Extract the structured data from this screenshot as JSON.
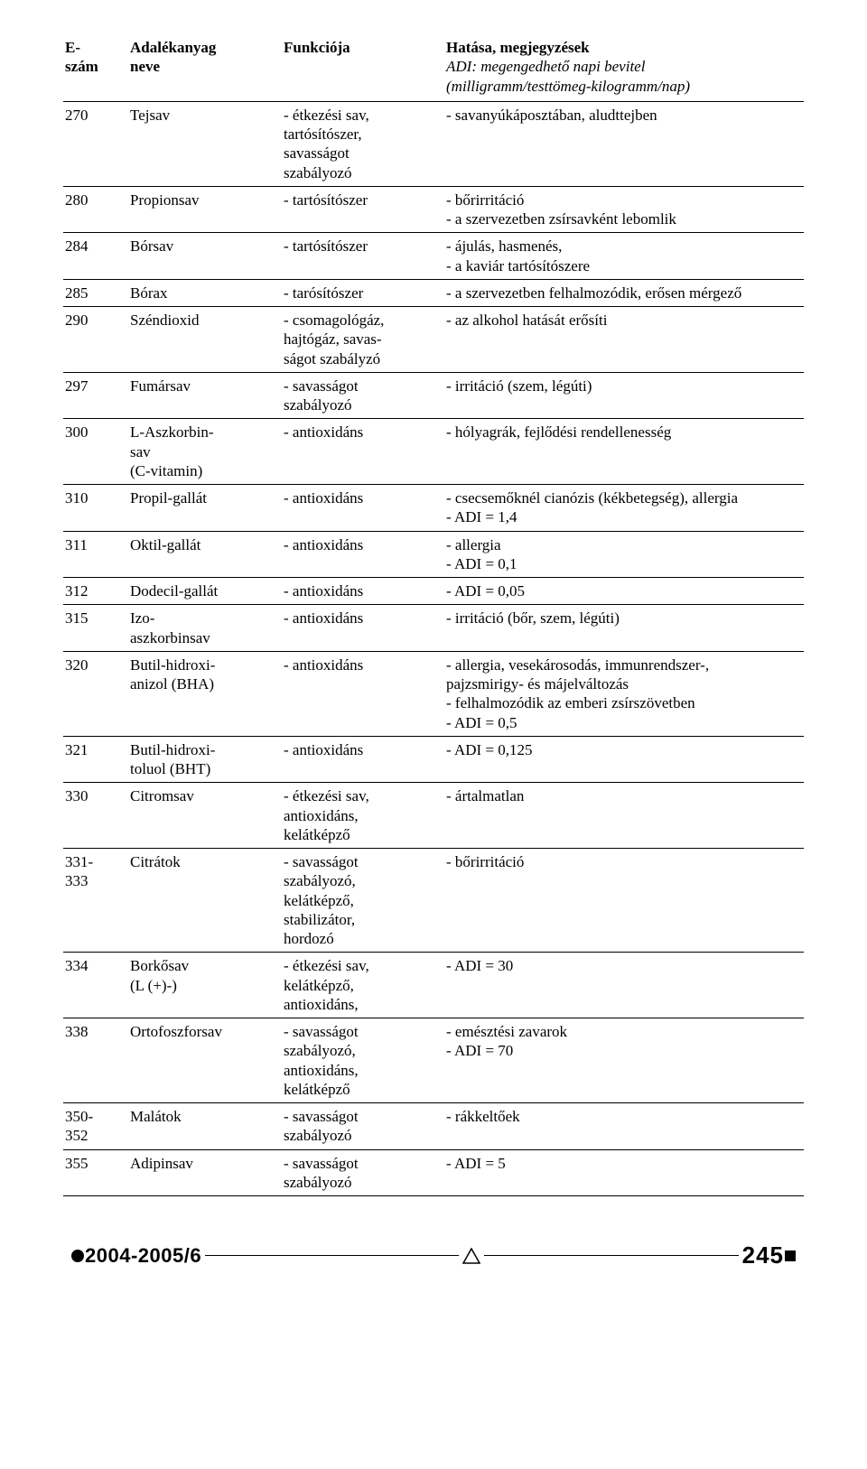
{
  "header": {
    "col_num_line1": "E-",
    "col_num_line2": "szám",
    "col_name_line1": "Adalékanyag",
    "col_name_line2": "neve",
    "col_func": "Funkciója",
    "col_eff_main": "Hatása, megjegyzések",
    "col_eff_sub1": "ADI: megengedhető napi bevitel",
    "col_eff_sub2": "(milligramm/testtömeg-kilogramm/nap)"
  },
  "rows": [
    {
      "num": "270",
      "name": "Tejsav",
      "func": [
        "- étkezési sav,",
        "tartósítószer,",
        "savasságot",
        "szabályozó"
      ],
      "eff": [
        "- savanyúkáposztában, aludttejben"
      ]
    },
    {
      "num": "280",
      "name": "Propionsav",
      "func": [
        "- tartósítószer"
      ],
      "eff": [
        "- bőrirritáció",
        "- a szervezetben zsírsavként lebomlik"
      ]
    },
    {
      "num": "284",
      "name": "Bórsav",
      "func": [
        "- tartósítószer"
      ],
      "eff": [
        "- ájulás, hasmenés,",
        "- a kaviár tartósítószere"
      ]
    },
    {
      "num": "285",
      "name": "Bórax",
      "func": [
        "- tarósítószer"
      ],
      "eff": [
        "- a szervezetben felhalmozódik, erősen mérgező"
      ]
    },
    {
      "num": "290",
      "name": "Széndioxid",
      "func": [
        "- csomagológáz,",
        "hajtógáz, savas-",
        "ságot szabályzó"
      ],
      "eff": [
        "- az alkohol hatását erősíti"
      ]
    },
    {
      "num": "297",
      "name": "Fumársav",
      "func": [
        "- savasságot",
        "szabályozó"
      ],
      "eff": [
        "- irritáció (szem, légúti)"
      ]
    },
    {
      "num": "300",
      "name": "L-Aszkorbin-\nsav\n(C-vitamin)",
      "func": [
        "- antioxidáns"
      ],
      "eff": [
        "- hólyagrák, fejlődési rendellenesség"
      ]
    },
    {
      "num": "310",
      "name": "Propil-gallát",
      "func": [
        "- antioxidáns"
      ],
      "eff": [
        "- csecsemőknél cianózis (kékbetegség), allergia",
        "- ADI = 1,4"
      ]
    },
    {
      "num": "311",
      "name": "Oktil-gallát",
      "func": [
        "- antioxidáns"
      ],
      "eff": [
        "- allergia",
        "- ADI = 0,1"
      ]
    },
    {
      "num": "312",
      "name": "Dodecil-gallát",
      "func": [
        "- antioxidáns"
      ],
      "eff": [
        "- ADI = 0,05"
      ]
    },
    {
      "num": "315",
      "name": "Izo-\naszkorbinsav",
      "func": [
        "- antioxidáns"
      ],
      "eff": [
        "- irritáció (bőr, szem, légúti)"
      ]
    },
    {
      "num": "320",
      "name": "Butil-hidroxi-\nanizol (BHA)",
      "func": [
        "- antioxidáns"
      ],
      "eff": [
        "- allergia, vesekárosodás, immunrendszer-,",
        "pajzsmirigy- és májelváltozás",
        "- felhalmozódik az emberi zsírszövetben",
        "- ADI = 0,5"
      ]
    },
    {
      "num": "321",
      "name": "Butil-hidroxi-\ntoluol (BHT)",
      "func": [
        "- antioxidáns"
      ],
      "eff": [
        "- ADI = 0,125"
      ]
    },
    {
      "num": "330",
      "name": "Citromsav",
      "func": [
        "- étkezési sav,",
        "antioxidáns,",
        "kelátképző"
      ],
      "eff": [
        "- ártalmatlan"
      ]
    },
    {
      "num": "331-\n333",
      "name": "Citrátok",
      "func": [
        "- savasságot",
        "szabályozó,",
        "kelátképző,",
        "stabilizátor,",
        "hordozó"
      ],
      "eff": [
        "- bőrirritáció"
      ]
    },
    {
      "num": "334",
      "name": "Borkősav\n(L (+)-)",
      "func": [
        "- étkezési sav,",
        "kelátképző,",
        "antioxidáns,"
      ],
      "eff": [
        "- ADI = 30"
      ]
    },
    {
      "num": "338",
      "name": "Ortofoszforsav",
      "func": [
        "- savasságot",
        "szabályozó,",
        "antioxidáns,",
        "kelátképző"
      ],
      "eff": [
        "- emésztési zavarok",
        "- ADI = 70"
      ]
    },
    {
      "num": "350-\n352",
      "name": "Malátok",
      "func": [
        "- savasságot",
        "szabályozó"
      ],
      "eff": [
        "- rákkeltőek"
      ]
    },
    {
      "num": "355",
      "name": "Adipinsav",
      "func": [
        "- savasságot",
        "szabályozó"
      ],
      "eff": [
        "- ADI = 5"
      ]
    }
  ],
  "footer": {
    "issue": "2004-2005/6",
    "page": "245"
  }
}
